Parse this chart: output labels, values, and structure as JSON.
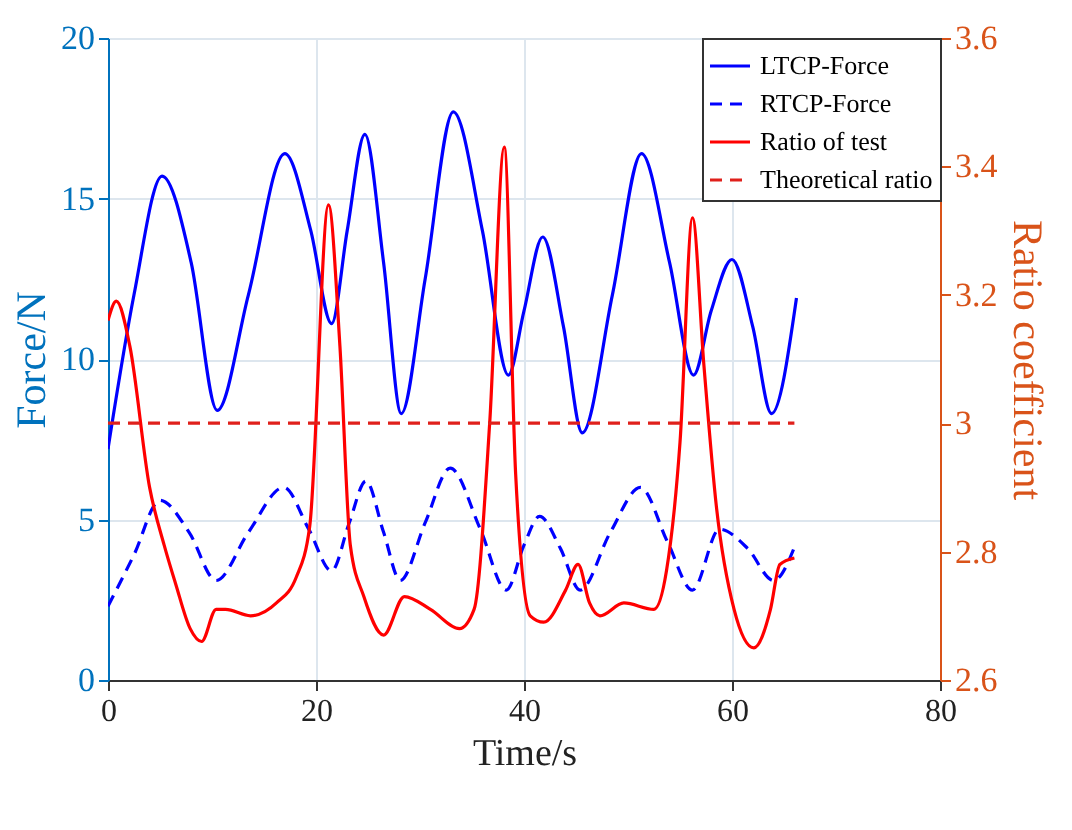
{
  "chart_data": {
    "type": "line",
    "xlabel": "Time/s",
    "ylabel": "Force/N",
    "y2label": "Ratio coefficient",
    "xlim": [
      0,
      80
    ],
    "xticks": [
      0,
      20,
      40,
      60,
      80
    ],
    "ylim": [
      0,
      20
    ],
    "yticks": [
      0,
      5,
      10,
      15,
      20
    ],
    "y2lim": [
      2.6,
      3.6
    ],
    "y2ticks": [
      {
        "value": 2.6,
        "label": "2.6"
      },
      {
        "value": 2.8,
        "label": "2.8"
      },
      {
        "value": 3,
        "label": "3"
      },
      {
        "value": 3.2,
        "label": "3.2"
      },
      {
        "value": 3.4,
        "label": "3.4"
      },
      {
        "value": 3.6,
        "label": "3.6"
      }
    ],
    "grid": true,
    "legend": "top right",
    "series": [
      {
        "name": "LTCP-Force",
        "color": "#0000ff",
        "line_style": "solid",
        "x": [
          0,
          2.5,
          5.2,
          8,
          10.5,
          13.5,
          17,
          19.5,
          21.5,
          23,
          24.7,
          26.5,
          28.2,
          30.5,
          33.2,
          36,
          38.5,
          40,
          41.8,
          43.8,
          45.6,
          48.5,
          51.3,
          54,
          56.3,
          58,
          60,
          62,
          63.8,
          66.2
        ],
        "values": [
          7.2,
          12,
          15.7,
          13,
          8.4,
          12,
          16.4,
          14,
          11.1,
          14,
          17,
          13,
          8.3,
          12.5,
          17.7,
          14,
          9.5,
          11.5,
          13.8,
          11,
          7.7,
          12,
          16.4,
          13,
          9.5,
          11.5,
          13.1,
          11,
          8.3,
          11.9
        ]
      },
      {
        "name": "RTCP-Force",
        "color": "#0000ff",
        "line_style": "dashed",
        "x": [
          0,
          2.5,
          5,
          7.8,
          10.4,
          13.5,
          16.9,
          19.3,
          21.5,
          23.2,
          24.8,
          26.5,
          28.1,
          30.5,
          32.9,
          35.8,
          38.3,
          40,
          41.5,
          43.5,
          45.4,
          48.3,
          51.2,
          53.8,
          56.2,
          58.8,
          61.5,
          64,
          66.2
        ],
        "values": [
          2.3,
          3.9,
          5.6,
          4.6,
          3.1,
          4.6,
          6,
          4.7,
          3.4,
          4.9,
          6.2,
          4.6,
          3.1,
          4.9,
          6.6,
          4.7,
          2.8,
          4.2,
          5.1,
          4.1,
          2.8,
          4.6,
          6,
          4.3,
          2.8,
          4.7,
          4.1,
          3.1,
          4.3
        ]
      },
      {
        "name": "Ratio of test",
        "color": "#ff0000",
        "line_style": "solid",
        "axis": "y2",
        "x": [
          0,
          0.8,
          2.1,
          4,
          5.4,
          6.5,
          7.9,
          9,
          10.4,
          11.3,
          13.7,
          16.2,
          18.1,
          19.4,
          21.2,
          22.3,
          23.3,
          24.6,
          26.5,
          28.5,
          31,
          33.8,
          35.2,
          36.7,
          38.1,
          39.2,
          40.6,
          41.9,
          44,
          45.2,
          46.3,
          47.3,
          49.6,
          52.5,
          53.7,
          55,
          56.2,
          57.3,
          58.5,
          60.2,
          62.1,
          63.7,
          64.6,
          66
        ],
        "values": [
          3.16,
          3.19,
          3.12,
          2.9,
          2.81,
          2.75,
          2.68,
          2.66,
          2.71,
          2.71,
          2.7,
          2.72,
          2.76,
          2.84,
          3.34,
          3.12,
          2.81,
          2.73,
          2.67,
          2.73,
          2.71,
          2.68,
          2.71,
          3,
          3.43,
          2.92,
          2.7,
          2.69,
          2.74,
          2.78,
          2.72,
          2.7,
          2.72,
          2.71,
          2.77,
          2.97,
          3.32,
          3.09,
          2.87,
          2.71,
          2.65,
          2.71,
          2.78,
          2.79
        ]
      },
      {
        "name": "Theoretical ratio",
        "color": "#e0201b",
        "line_style": "dashed",
        "axis": "y2",
        "x": [
          0,
          66
        ],
        "values": [
          3,
          3
        ]
      }
    ]
  }
}
